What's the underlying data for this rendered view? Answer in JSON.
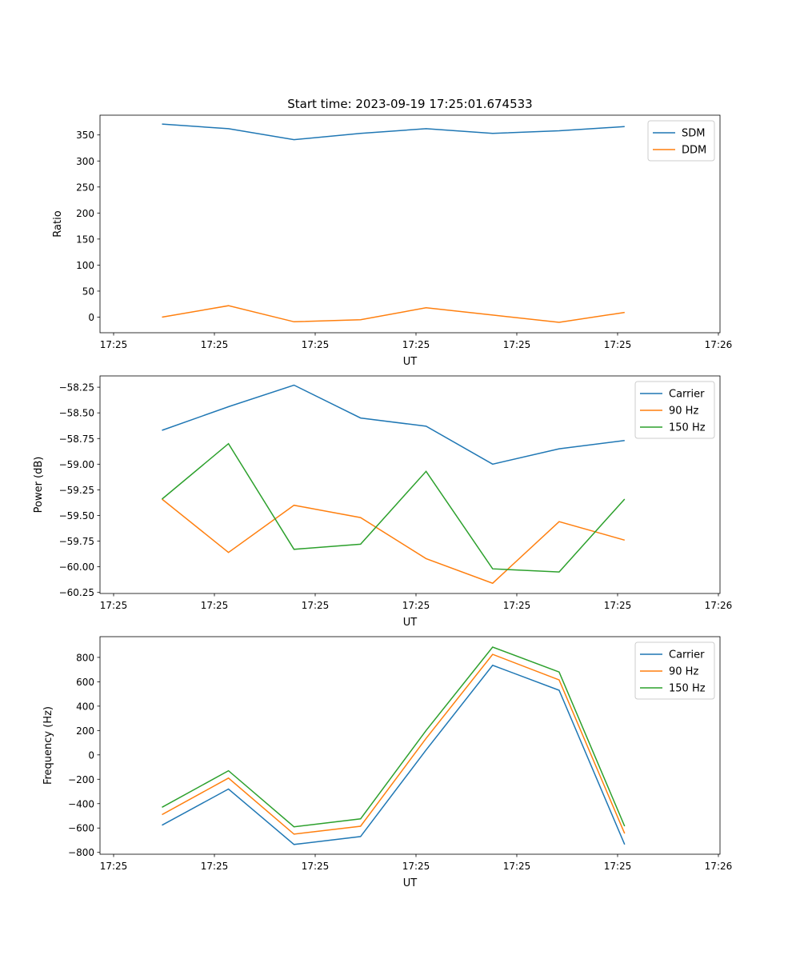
{
  "chart_data": [
    {
      "type": "line",
      "title": "Start time: 2023-09-19 17:25:01.674533",
      "xlabel": "UT",
      "ylabel": "Ratio",
      "x_seconds_after_1725": [
        4.8,
        11.4,
        17.9,
        24.5,
        31.0,
        37.6,
        44.2,
        50.7
      ],
      "xlim": [
        -1.35,
        60.16
      ],
      "xticks": [
        0,
        10,
        20,
        30,
        40,
        50,
        60
      ],
      "xtick_labels": [
        "17:25",
        "17:25",
        "17:25",
        "17:25",
        "17:25",
        "17:25",
        "17:26"
      ],
      "ylim": [
        -30,
        388
      ],
      "yticks": [
        0,
        50,
        100,
        150,
        200,
        250,
        300,
        350
      ],
      "ytick_labels": [
        "0",
        "50",
        "100",
        "150",
        "200",
        "250",
        "300",
        "350"
      ],
      "legend": "top-right",
      "series": [
        {
          "name": "SDM",
          "color": "#1f77b4",
          "values": [
            371,
            362,
            341,
            353,
            362,
            353,
            358,
            366
          ]
        },
        {
          "name": "DDM",
          "color": "#ff7f0e",
          "values": [
            0,
            22,
            -9,
            -5,
            18,
            4,
            -10,
            9
          ]
        }
      ]
    },
    {
      "type": "line",
      "title": "",
      "xlabel": "UT",
      "ylabel": "Power (dB)",
      "x_seconds_after_1725": [
        4.8,
        11.4,
        17.9,
        24.5,
        31.0,
        37.6,
        44.2,
        50.7
      ],
      "xlim": [
        -1.35,
        60.16
      ],
      "xticks": [
        0,
        10,
        20,
        30,
        40,
        50,
        60
      ],
      "xtick_labels": [
        "17:25",
        "17:25",
        "17:25",
        "17:25",
        "17:25",
        "17:25",
        "17:26"
      ],
      "ylim": [
        -60.26,
        -58.14
      ],
      "yticks": [
        -58.25,
        -58.5,
        -58.75,
        -59.0,
        -59.25,
        -59.5,
        -59.75,
        -60.0,
        -60.25
      ],
      "ytick_labels": [
        "−58.25",
        "−58.50",
        "−58.75",
        "−59.00",
        "−59.25",
        "−59.50",
        "−59.75",
        "−60.00",
        "−60.25"
      ],
      "legend": "top-right",
      "series": [
        {
          "name": "Carrier",
          "color": "#1f77b4",
          "values": [
            -58.67,
            -58.44,
            -58.23,
            -58.55,
            -58.63,
            -59.0,
            -58.85,
            -58.77
          ]
        },
        {
          "name": "90 Hz",
          "color": "#ff7f0e",
          "values": [
            -59.34,
            -59.86,
            -59.4,
            -59.52,
            -59.92,
            -60.16,
            -59.56,
            -59.74
          ]
        },
        {
          "name": "150 Hz",
          "color": "#2ca02c",
          "values": [
            -59.34,
            -58.8,
            -59.83,
            -59.78,
            -59.07,
            -60.02,
            -60.05,
            -59.34
          ]
        }
      ]
    },
    {
      "type": "line",
      "title": "",
      "xlabel": "UT",
      "ylabel": "Frequency (Hz)",
      "x_seconds_after_1725": [
        4.8,
        11.4,
        17.9,
        24.5,
        31.0,
        37.6,
        44.2,
        50.7
      ],
      "xlim": [
        -1.35,
        60.16
      ],
      "xticks": [
        0,
        10,
        20,
        30,
        40,
        50,
        60
      ],
      "xtick_labels": [
        "17:25",
        "17:25",
        "17:25",
        "17:25",
        "17:25",
        "17:25",
        "17:26"
      ],
      "ylim": [
        -815,
        970
      ],
      "yticks": [
        -800,
        -600,
        -400,
        -200,
        0,
        200,
        400,
        600,
        800
      ],
      "ytick_labels": [
        "−800",
        "−600",
        "−400",
        "−200",
        "0",
        "200",
        "400",
        "600",
        "800"
      ],
      "legend": "top-right",
      "series": [
        {
          "name": "Carrier",
          "color": "#1f77b4",
          "values": [
            -577,
            -280,
            -735,
            -670,
            40,
            735,
            530,
            -735
          ]
        },
        {
          "name": "90 Hz",
          "color": "#ff7f0e",
          "values": [
            -490,
            -190,
            -650,
            -585,
            135,
            825,
            615,
            -645
          ]
        },
        {
          "name": "150 Hz",
          "color": "#2ca02c",
          "values": [
            -430,
            -130,
            -590,
            -525,
            200,
            885,
            680,
            -585
          ]
        }
      ]
    }
  ]
}
